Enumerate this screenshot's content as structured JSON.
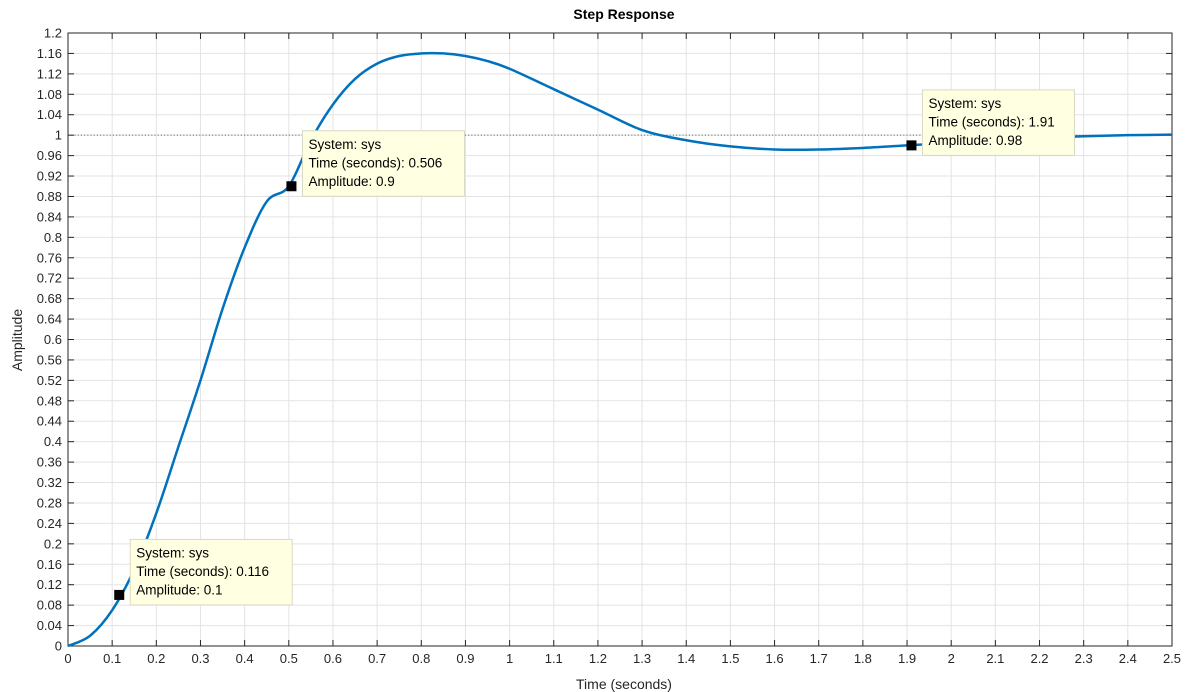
{
  "chart_data": {
    "type": "line",
    "title": "Step Response",
    "xlabel": "Time (seconds)",
    "ylabel": "Amplitude",
    "xlim": [
      0,
      2.5
    ],
    "ylim": [
      0,
      1.2
    ],
    "grid": true,
    "x_ticks": [
      "0",
      "0.1",
      "0.2",
      "0.3",
      "0.4",
      "0.5",
      "0.6",
      "0.7",
      "0.8",
      "0.9",
      "1",
      "1.1",
      "1.2",
      "1.3",
      "1.4",
      "1.5",
      "1.6",
      "1.7",
      "1.8",
      "1.9",
      "2",
      "2.1",
      "2.2",
      "2.3",
      "2.4",
      "2.5"
    ],
    "y_ticks": [
      "0",
      "0.04",
      "0.08",
      "0.12",
      "0.16",
      "0.2",
      "0.24",
      "0.28",
      "0.32",
      "0.36",
      "0.4",
      "0.44",
      "0.48",
      "0.52",
      "0.56",
      "0.6",
      "0.64",
      "0.68",
      "0.72",
      "0.76",
      "0.8",
      "0.84",
      "0.88",
      "0.92",
      "0.96",
      "1",
      "1.04",
      "1.08",
      "1.12",
      "1.16",
      "1.2"
    ],
    "reference_line": {
      "y": 1,
      "style": "dotted"
    },
    "series": [
      {
        "name": "sys",
        "color": "#0072BD",
        "x": [
          0,
          0.05,
          0.1,
          0.15,
          0.2,
          0.25,
          0.3,
          0.35,
          0.4,
          0.45,
          0.5,
          0.55,
          0.6,
          0.65,
          0.7,
          0.75,
          0.8,
          0.85,
          0.9,
          0.95,
          1.0,
          1.1,
          1.2,
          1.3,
          1.4,
          1.5,
          1.6,
          1.7,
          1.8,
          1.9,
          2.0,
          2.1,
          2.2,
          2.3,
          2.4,
          2.5
        ],
        "y": [
          0,
          0.02,
          0.07,
          0.15,
          0.26,
          0.39,
          0.52,
          0.66,
          0.78,
          0.87,
          0.9,
          0.99,
          1.06,
          1.11,
          1.14,
          1.155,
          1.16,
          1.16,
          1.155,
          1.145,
          1.13,
          1.09,
          1.05,
          1.01,
          0.99,
          0.978,
          0.972,
          0.972,
          0.975,
          0.98,
          0.985,
          0.99,
          0.995,
          0.998,
          1.0,
          1.001
        ]
      }
    ],
    "data_tips": [
      {
        "x": 0.116,
        "y": 0.1,
        "lines": [
          "System: sys",
          "Time (seconds): 0.116",
          "Amplitude: 0.1"
        ]
      },
      {
        "x": 0.506,
        "y": 0.9,
        "lines": [
          "System: sys",
          "Time (seconds): 0.506",
          "Amplitude: 0.9"
        ]
      },
      {
        "x": 1.91,
        "y": 0.98,
        "lines": [
          "System: sys",
          "Time (seconds): 1.91",
          "Amplitude: 0.98"
        ]
      }
    ]
  }
}
